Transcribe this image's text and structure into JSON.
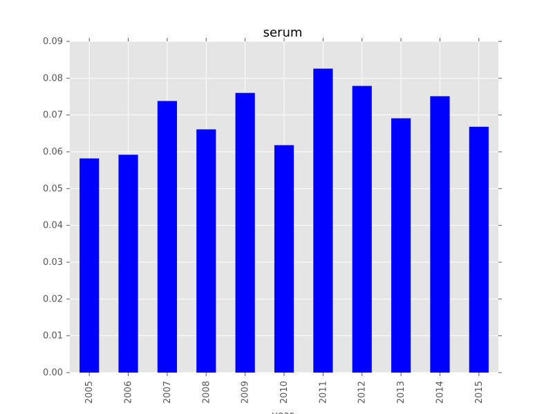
{
  "chart_data": {
    "type": "bar",
    "title": "serum",
    "xlabel": "year",
    "ylabel": "",
    "categories": [
      "2005",
      "2006",
      "2007",
      "2008",
      "2009",
      "2010",
      "2011",
      "2012",
      "2013",
      "2014",
      "2015"
    ],
    "values": [
      0.0582,
      0.0592,
      0.0738,
      0.0661,
      0.076,
      0.0618,
      0.0826,
      0.0779,
      0.0691,
      0.0751,
      0.0668
    ],
    "ylim": [
      0,
      0.09
    ],
    "yticks": [
      "0.00",
      "0.01",
      "0.02",
      "0.03",
      "0.04",
      "0.05",
      "0.06",
      "0.07",
      "0.08",
      "0.09"
    ],
    "grid": true,
    "legend": "none",
    "colors": {
      "bar": "#0000ff",
      "plot_background": "#e5e5e5",
      "grid": "#ffffff"
    }
  }
}
